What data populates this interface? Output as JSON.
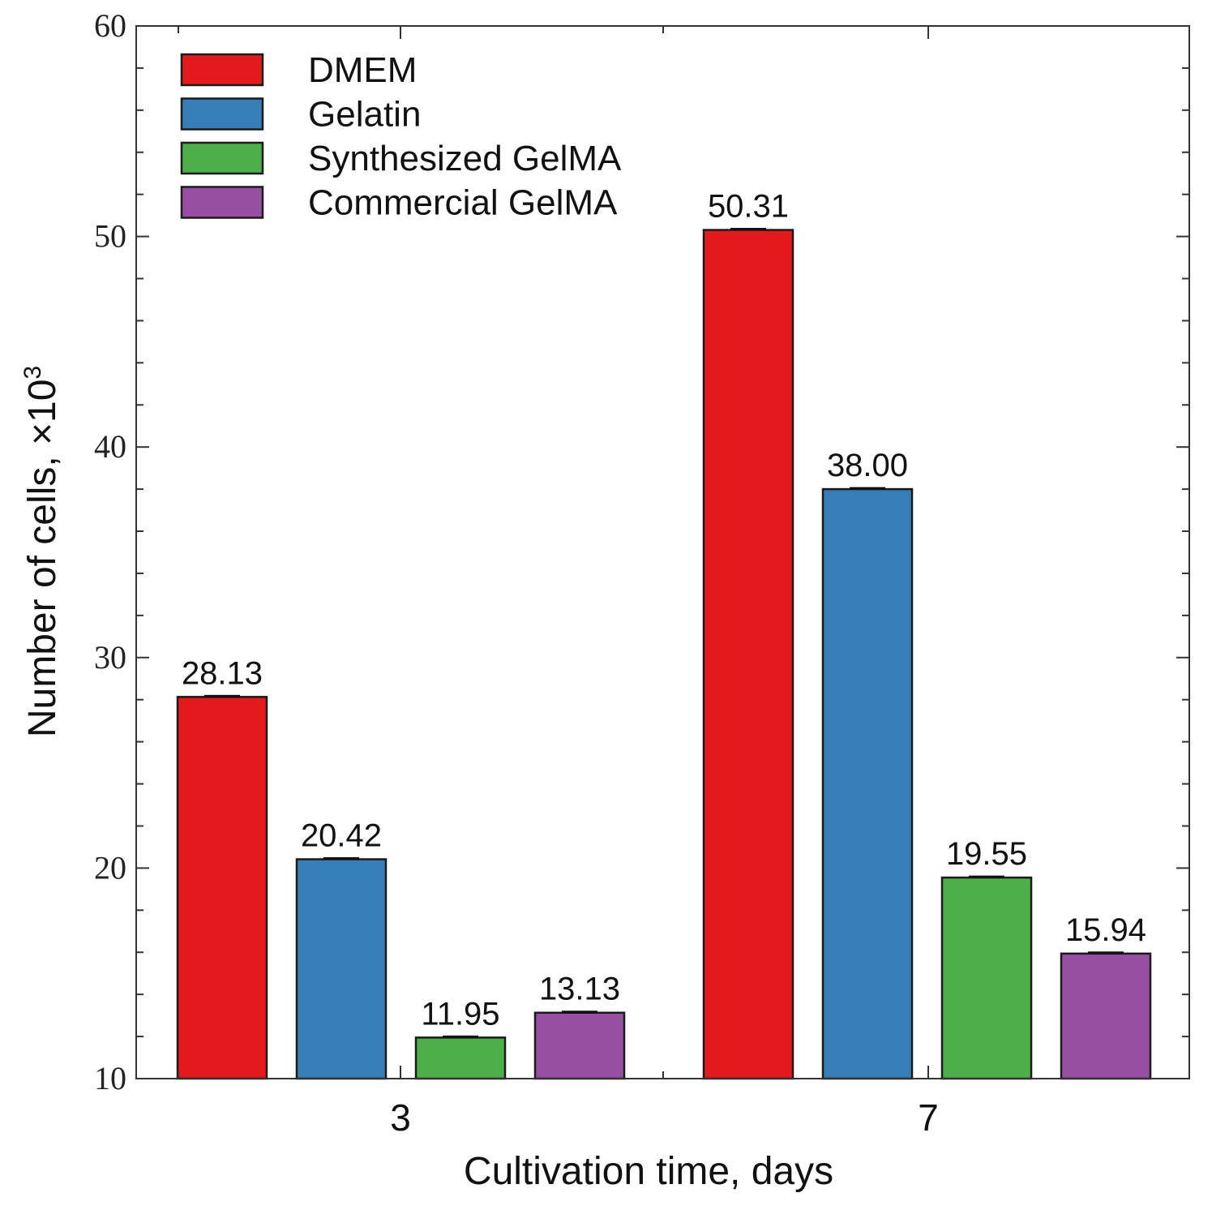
{
  "chart_data": {
    "type": "bar",
    "categories": [
      "3",
      "7"
    ],
    "series": [
      {
        "name": "DMEM",
        "color": "#e31a1c",
        "values": [
          28.13,
          50.31
        ],
        "labels": [
          "28.13",
          "50.31"
        ]
      },
      {
        "name": "Gelatin",
        "color": "#377eb8",
        "values": [
          20.42,
          38.0
        ],
        "labels": [
          "20.42",
          "38.00"
        ]
      },
      {
        "name": "Synthesized GelMA",
        "color": "#4daf4a",
        "values": [
          11.95,
          19.55
        ],
        "labels": [
          "11.95",
          "19.55"
        ]
      },
      {
        "name": "Commercial GelMA",
        "color": "#984ea3",
        "values": [
          13.13,
          15.94
        ],
        "labels": [
          "13.13",
          "15.94"
        ]
      }
    ],
    "xlabel": "Cultivation time, days",
    "ylabel": "Number of cells, ×10",
    "ylabel_superscript": "3",
    "ylim": [
      10,
      60
    ],
    "yticks": [
      10,
      20,
      30,
      40,
      50,
      60
    ],
    "ytick_labels": [
      "10",
      "20",
      "30",
      "40",
      "50",
      "60"
    ],
    "legend_position": "top-left",
    "grid": false
  }
}
